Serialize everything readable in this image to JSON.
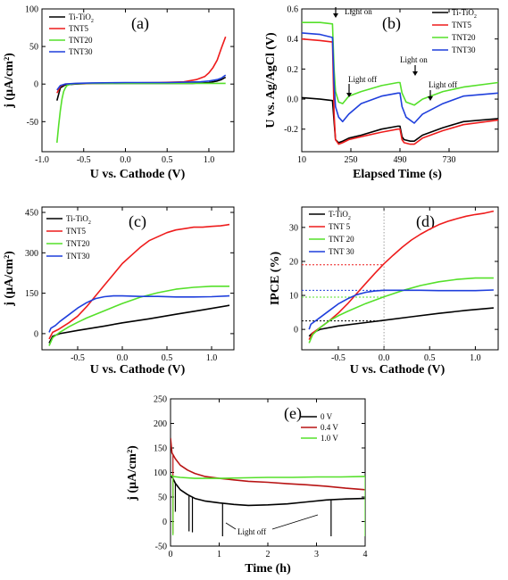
{
  "colors": {
    "black": "#000000",
    "red": "#ee1c1c",
    "green": "#55e02a",
    "blue": "#1f3fdc",
    "darkred": "#b81414"
  },
  "chart_data": [
    {
      "id": "a",
      "type": "line",
      "panel_label": "(a)",
      "xlabel": "U vs. Cathode (V)",
      "ylabel": "j (µA/cm²)",
      "xlim": [
        -1.0,
        1.3
      ],
      "ylim": [
        -90,
        100
      ],
      "xticks": [
        -1.0,
        -0.5,
        0.0,
        0.5,
        1.0
      ],
      "xtick_labels": [
        "-1.0",
        "-0.5",
        "0.0",
        "0.5",
        "1.0"
      ],
      "yticks": [
        -50,
        0,
        50,
        100
      ],
      "ytick_labels": [
        "-50",
        "0",
        "50",
        "100"
      ],
      "legend": "top-left",
      "series": [
        {
          "name": "Ti-TiO2",
          "color": "black",
          "x": [
            -0.82,
            -0.78,
            -0.72,
            -0.6,
            -0.4,
            0,
            0.4,
            0.8,
            1.0,
            1.1,
            1.15,
            1.2
          ],
          "y": [
            -22,
            -5,
            -1,
            0,
            1,
            1,
            1,
            1,
            2,
            4,
            6,
            9
          ]
        },
        {
          "name": "TNT5",
          "color": "red",
          "x": [
            -0.82,
            -0.78,
            -0.72,
            -0.6,
            -0.4,
            0,
            0.4,
            0.7,
            0.85,
            0.95,
            1.0,
            1.05,
            1.1,
            1.15,
            1.2
          ],
          "y": [
            -12,
            -3,
            0,
            0.5,
            1,
            1.5,
            2,
            3,
            6,
            10,
            15,
            22,
            32,
            48,
            63
          ]
        },
        {
          "name": "TNT20",
          "color": "green",
          "x": [
            -0.82,
            -0.8,
            -0.78,
            -0.76,
            -0.74,
            -0.72,
            -0.7,
            -0.65,
            -0.6,
            -0.5,
            0,
            0.5,
            1.0,
            1.2
          ],
          "y": [
            -78,
            -55,
            -35,
            -20,
            -10,
            -5,
            -2,
            0,
            0.5,
            1,
            1,
            1,
            1,
            1
          ]
        },
        {
          "name": "TNT30",
          "color": "blue",
          "x": [
            -0.82,
            -0.78,
            -0.72,
            -0.6,
            -0.4,
            0,
            0.5,
            0.9,
            1.0,
            1.1,
            1.15,
            1.2
          ],
          "y": [
            -8,
            -2,
            0,
            1,
            1.5,
            2,
            2,
            3,
            4,
            6,
            8,
            12
          ]
        }
      ]
    },
    {
      "id": "b",
      "type": "line",
      "panel_label": "(b)",
      "xlabel": "Elapsed Time (s)",
      "ylabel": "U vs. Ag/AgCl (V)",
      "xlim": [
        10,
        970
      ],
      "ylim": [
        -0.35,
        0.6
      ],
      "xticks": [
        10,
        250,
        490,
        730
      ],
      "xtick_labels": [
        "10",
        "250",
        "490",
        "730"
      ],
      "yticks": [
        -0.2,
        0.0,
        0.2,
        0.4,
        0.6
      ],
      "ytick_labels": [
        "-0.2",
        "0.0",
        "0.2",
        "0.4",
        "0.6"
      ],
      "legend": "top-right",
      "annotations": [
        "Light on",
        "Light off",
        "Light on",
        "Light off"
      ],
      "series": [
        {
          "name": "Ti-TiO2",
          "color": "black",
          "x": [
            10,
            100,
            160,
            168,
            175,
            190,
            210,
            240,
            300,
            400,
            480,
            490,
            500,
            510,
            540,
            560,
            600,
            700,
            800,
            970
          ],
          "y": [
            0.01,
            0.0,
            -0.01,
            -0.15,
            -0.27,
            -0.29,
            -0.28,
            -0.26,
            -0.24,
            -0.2,
            -0.18,
            -0.18,
            -0.25,
            -0.27,
            -0.28,
            -0.28,
            -0.24,
            -0.19,
            -0.15,
            -0.13
          ]
        },
        {
          "name": "TNT5",
          "color": "red",
          "x": [
            10,
            100,
            160,
            168,
            175,
            190,
            210,
            240,
            300,
            400,
            480,
            490,
            500,
            510,
            540,
            560,
            600,
            700,
            800,
            970
          ],
          "y": [
            0.4,
            0.39,
            0.38,
            -0.1,
            -0.27,
            -0.3,
            -0.29,
            -0.27,
            -0.25,
            -0.22,
            -0.2,
            -0.2,
            -0.27,
            -0.29,
            -0.3,
            -0.3,
            -0.26,
            -0.21,
            -0.17,
            -0.14
          ]
        },
        {
          "name": "TNT20",
          "color": "green",
          "x": [
            10,
            100,
            160,
            168,
            175,
            190,
            210,
            240,
            300,
            400,
            480,
            490,
            500,
            520,
            560,
            600,
            700,
            800,
            970
          ],
          "y": [
            0.51,
            0.51,
            0.5,
            0.2,
            0.05,
            -0.02,
            -0.03,
            0.02,
            0.05,
            0.09,
            0.11,
            0.11,
            0.04,
            -0.02,
            -0.04,
            0.0,
            0.05,
            0.08,
            0.11
          ]
        },
        {
          "name": "TNT30",
          "color": "blue",
          "x": [
            10,
            100,
            160,
            168,
            175,
            190,
            210,
            240,
            300,
            400,
            480,
            490,
            500,
            520,
            560,
            600,
            700,
            800,
            970
          ],
          "y": [
            0.44,
            0.43,
            0.41,
            0.1,
            -0.05,
            -0.12,
            -0.15,
            -0.1,
            -0.03,
            0.02,
            0.04,
            0.04,
            -0.05,
            -0.12,
            -0.16,
            -0.1,
            -0.03,
            0.02,
            0.04
          ]
        }
      ]
    },
    {
      "id": "c",
      "type": "line",
      "panel_label": "(c)",
      "xlabel": "U vs. Cathode (V)",
      "ylabel": "j (µA/cm²)",
      "xlim": [
        -0.9,
        1.25
      ],
      "ylim": [
        -60,
        470
      ],
      "xticks": [
        -0.5,
        0.0,
        0.5,
        1.0
      ],
      "xtick_labels": [
        "-0.5",
        "0.0",
        "0.5",
        "1.0"
      ],
      "yticks": [
        0,
        150,
        300,
        450
      ],
      "ytick_labels": [
        "0",
        "150",
        "300",
        "450"
      ],
      "legend": "top-left",
      "series": [
        {
          "name": "Ti-TiO2",
          "color": "black",
          "x": [
            -0.82,
            -0.78,
            -0.7,
            -0.5,
            -0.2,
            0.0,
            0.3,
            0.6,
            0.9,
            1.2
          ],
          "y": [
            -35,
            -10,
            0,
            12,
            28,
            40,
            55,
            72,
            88,
            105
          ]
        },
        {
          "name": "TNT5",
          "color": "red",
          "x": [
            -0.82,
            -0.78,
            -0.72,
            -0.6,
            -0.5,
            -0.4,
            -0.3,
            -0.2,
            -0.1,
            0.0,
            0.1,
            0.2,
            0.3,
            0.4,
            0.5,
            0.6,
            0.7,
            0.8,
            0.9,
            1.0,
            1.1,
            1.2
          ],
          "y": [
            -20,
            5,
            15,
            40,
            65,
            100,
            140,
            180,
            220,
            260,
            290,
            320,
            345,
            360,
            375,
            385,
            390,
            395,
            395,
            398,
            400,
            405
          ]
        },
        {
          "name": "TNT20",
          "color": "green",
          "x": [
            -0.82,
            -0.78,
            -0.7,
            -0.6,
            -0.5,
            -0.4,
            -0.2,
            0.0,
            0.2,
            0.4,
            0.6,
            0.8,
            1.0,
            1.2
          ],
          "y": [
            -45,
            -15,
            5,
            25,
            42,
            58,
            85,
            112,
            135,
            152,
            165,
            172,
            176,
            176
          ]
        },
        {
          "name": "TNT30",
          "color": "blue",
          "x": [
            -0.82,
            -0.8,
            -0.75,
            -0.7,
            -0.6,
            -0.5,
            -0.4,
            -0.3,
            -0.2,
            -0.1,
            0.0,
            0.2,
            0.4,
            0.6,
            0.8,
            1.0,
            1.2
          ],
          "y": [
            5,
            20,
            30,
            45,
            70,
            95,
            115,
            130,
            137,
            140,
            140,
            138,
            138,
            136,
            136,
            137,
            140
          ]
        }
      ]
    },
    {
      "id": "d",
      "type": "line",
      "panel_label": "(d)",
      "xlabel": "U vs. Cathode (V)",
      "ylabel": "IPCE (%)",
      "xlim": [
        -0.9,
        1.25
      ],
      "ylim": [
        -6,
        36
      ],
      "xticks": [
        -0.5,
        0.0,
        0.5,
        1.0
      ],
      "xtick_labels": [
        "-0.5",
        "0.0",
        "0.5",
        "1.0"
      ],
      "yticks": [
        0,
        10,
        20,
        30
      ],
      "ytick_labels": [
        "0",
        "10",
        "20",
        "30"
      ],
      "legend": "top-left",
      "reference_lines": {
        "vertical_x": 0.0,
        "horizontal_y": [
          19,
          11.5,
          9.5,
          2.5
        ]
      },
      "series": [
        {
          "name": "T-TiO2",
          "color": "black",
          "x": [
            -0.82,
            -0.78,
            -0.7,
            -0.5,
            -0.2,
            0.0,
            0.3,
            0.6,
            0.9,
            1.2
          ],
          "y": [
            -2,
            -1,
            0,
            1,
            2,
            2.7,
            3.7,
            4.7,
            5.6,
            6.3
          ]
        },
        {
          "name": "TNT 5",
          "color": "red",
          "x": [
            -0.82,
            -0.78,
            -0.7,
            -0.6,
            -0.5,
            -0.4,
            -0.3,
            -0.2,
            -0.1,
            0.0,
            0.1,
            0.2,
            0.3,
            0.4,
            0.5,
            0.6,
            0.7,
            0.8,
            0.9,
            1.0,
            1.1,
            1.2
          ],
          "y": [
            -3,
            -1,
            0.5,
            2.5,
            4.8,
            7.5,
            10.5,
            13.5,
            16.5,
            19.3,
            21.8,
            24.2,
            26.3,
            28,
            29.5,
            30.8,
            31.8,
            32.6,
            33.3,
            33.8,
            34.2,
            34.8
          ]
        },
        {
          "name": "TNT 20",
          "color": "green",
          "x": [
            -0.82,
            -0.78,
            -0.7,
            -0.6,
            -0.5,
            -0.4,
            -0.2,
            0.0,
            0.2,
            0.4,
            0.6,
            0.8,
            1.0,
            1.2
          ],
          "y": [
            -4,
            -1.5,
            0.5,
            2.5,
            4,
            5.3,
            7.6,
            9.6,
            11.4,
            12.9,
            14,
            14.7,
            15.1,
            15.1
          ]
        },
        {
          "name": "TNT 30",
          "color": "blue",
          "x": [
            -0.82,
            -0.8,
            -0.75,
            -0.7,
            -0.6,
            -0.5,
            -0.4,
            -0.3,
            -0.2,
            -0.1,
            0.0,
            0.2,
            0.4,
            0.6,
            0.8,
            1.0,
            1.2
          ],
          "y": [
            0,
            1.5,
            2.5,
            3.5,
            5.5,
            7.5,
            9,
            10.2,
            10.9,
            11.3,
            11.5,
            11.5,
            11.5,
            11.4,
            11.4,
            11.4,
            11.6
          ]
        }
      ]
    },
    {
      "id": "e",
      "type": "line",
      "panel_label": "(e)",
      "xlabel": "Time (h)",
      "ylabel": "j (µA/cm²)",
      "xlim": [
        0,
        4
      ],
      "ylim": [
        -50,
        250
      ],
      "xticks": [
        0,
        1,
        2,
        3,
        4
      ],
      "xtick_labels": [
        "0",
        "1",
        "2",
        "3",
        "4"
      ],
      "yticks": [
        -50,
        0,
        50,
        100,
        150,
        200,
        250
      ],
      "ytick_labels": [
        "-50",
        "0",
        "50",
        "100",
        "150",
        "200",
        "250"
      ],
      "legend": "top-right",
      "annotations": [
        "Light off"
      ],
      "series": [
        {
          "name": "0 V",
          "color": "black",
          "x": [
            0,
            0.05,
            0.1,
            0.2,
            0.35,
            0.5,
            0.7,
            1.0,
            1.3,
            1.6,
            2.0,
            2.4,
            2.8,
            3.2,
            3.6,
            4.0
          ],
          "y": [
            95,
            88,
            78,
            65,
            55,
            47,
            42,
            38,
            35,
            33,
            34,
            36,
            40,
            44,
            46,
            47
          ],
          "drops": [
            [
              0.1,
              20
            ],
            [
              0.38,
              -20
            ],
            [
              0.45,
              -22
            ],
            [
              1.07,
              -30
            ],
            [
              3.3,
              -30
            ]
          ]
        },
        {
          "name": "0.4 V",
          "color": "darkred",
          "x": [
            0,
            0.03,
            0.1,
            0.2,
            0.35,
            0.5,
            0.7,
            1.0,
            1.3,
            1.6,
            2.0,
            2.4,
            2.8,
            3.2,
            3.6,
            4.0
          ],
          "y": [
            170,
            140,
            128,
            115,
            105,
            98,
            92,
            88,
            85,
            82,
            80,
            77,
            75,
            72,
            68,
            65
          ],
          "drops": [
            [
              0.05,
              -25
            ]
          ]
        },
        {
          "name": "1.0 V",
          "color": "green",
          "x": [
            0,
            0.05,
            0.2,
            0.5,
            1.0,
            1.5,
            2.0,
            2.5,
            3.0,
            3.5,
            4.0
          ],
          "y": [
            95,
            92,
            90,
            88,
            88,
            89,
            90,
            90,
            91,
            91,
            92
          ],
          "drops": [
            [
              0.05,
              -28
            ],
            [
              4.0,
              -30
            ]
          ]
        }
      ]
    }
  ]
}
